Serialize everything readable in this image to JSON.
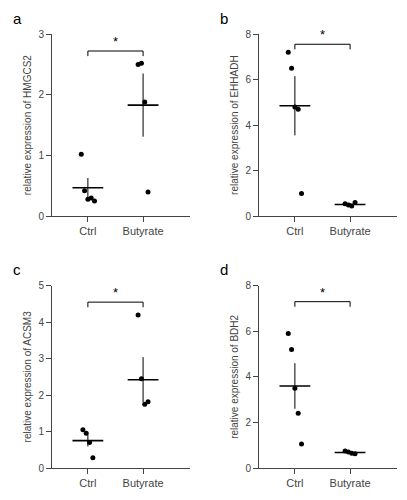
{
  "chart_data": [
    {
      "type": "scatter",
      "title": "a",
      "ylabel": "relative expression of HMGCS2",
      "categories": [
        "Ctrl",
        "Butyrate"
      ],
      "values": [
        [
          1.02,
          0.42,
          0.28,
          0.3,
          0.25
        ],
        [
          2.5,
          2.52,
          1.88,
          0.4
        ]
      ],
      "mean": [
        0.47,
        1.83
      ],
      "sd": [
        0.16,
        0.52
      ],
      "annotations": [
        {
          "text": "*",
          "from": "Ctrl",
          "to": "Butyrate",
          "y": 2.72
        }
      ],
      "ylim": [
        0,
        3.0
      ],
      "yticks": [
        0,
        1,
        2,
        3
      ],
      "grid": false,
      "color": "#000000"
    },
    {
      "type": "scatter",
      "title": "b",
      "ylabel": "relative expression of EHHADH",
      "categories": [
        "Ctrl",
        "Butyrate"
      ],
      "values": [
        [
          7.2,
          6.5,
          4.8,
          4.7,
          1.0
        ],
        [
          0.55,
          0.5,
          0.45,
          0.6
        ]
      ],
      "mean": [
        4.85,
        0.52
      ],
      "sd": [
        1.3,
        0.06
      ],
      "annotations": [
        {
          "text": "*",
          "from": "Ctrl",
          "to": "Butyrate",
          "y": 7.55
        }
      ],
      "ylim": [
        0,
        8.0
      ],
      "yticks": [
        0,
        2,
        4,
        6,
        8
      ],
      "grid": false,
      "color": "#000000"
    },
    {
      "type": "scatter",
      "title": "c",
      "ylabel": "relative expression of ACSM3",
      "categories": [
        "Ctrl",
        "Butyrate"
      ],
      "values": [
        [
          1.05,
          0.95,
          0.7,
          0.28
        ],
        [
          4.2,
          2.45,
          1.75,
          1.82
        ]
      ],
      "mean": [
        0.75,
        2.42
      ],
      "sd": [
        0.16,
        0.62
      ],
      "annotations": [
        {
          "text": "*",
          "from": "Ctrl",
          "to": "Butyrate",
          "y": 4.55
        }
      ],
      "ylim": [
        0,
        5.0
      ],
      "yticks": [
        0,
        1,
        2,
        3,
        4,
        5
      ],
      "grid": false,
      "color": "#000000"
    },
    {
      "type": "scatter",
      "title": "d",
      "ylabel": "relative expression of BDH2",
      "categories": [
        "Ctrl",
        "Butyrate"
      ],
      "values": [
        [
          5.9,
          5.2,
          3.5,
          2.4,
          1.05
        ],
        [
          0.75,
          0.7,
          0.65,
          0.62
        ]
      ],
      "mean": [
        3.6,
        0.68
      ],
      "sd": [
        1.0,
        0.06
      ],
      "annotations": [
        {
          "text": "*",
          "from": "Ctrl",
          "to": "Butyrate",
          "y": 7.3
        }
      ],
      "ylim": [
        0,
        8.0
      ],
      "yticks": [
        0,
        2,
        4,
        6,
        8
      ],
      "grid": false,
      "color": "#000000"
    }
  ]
}
